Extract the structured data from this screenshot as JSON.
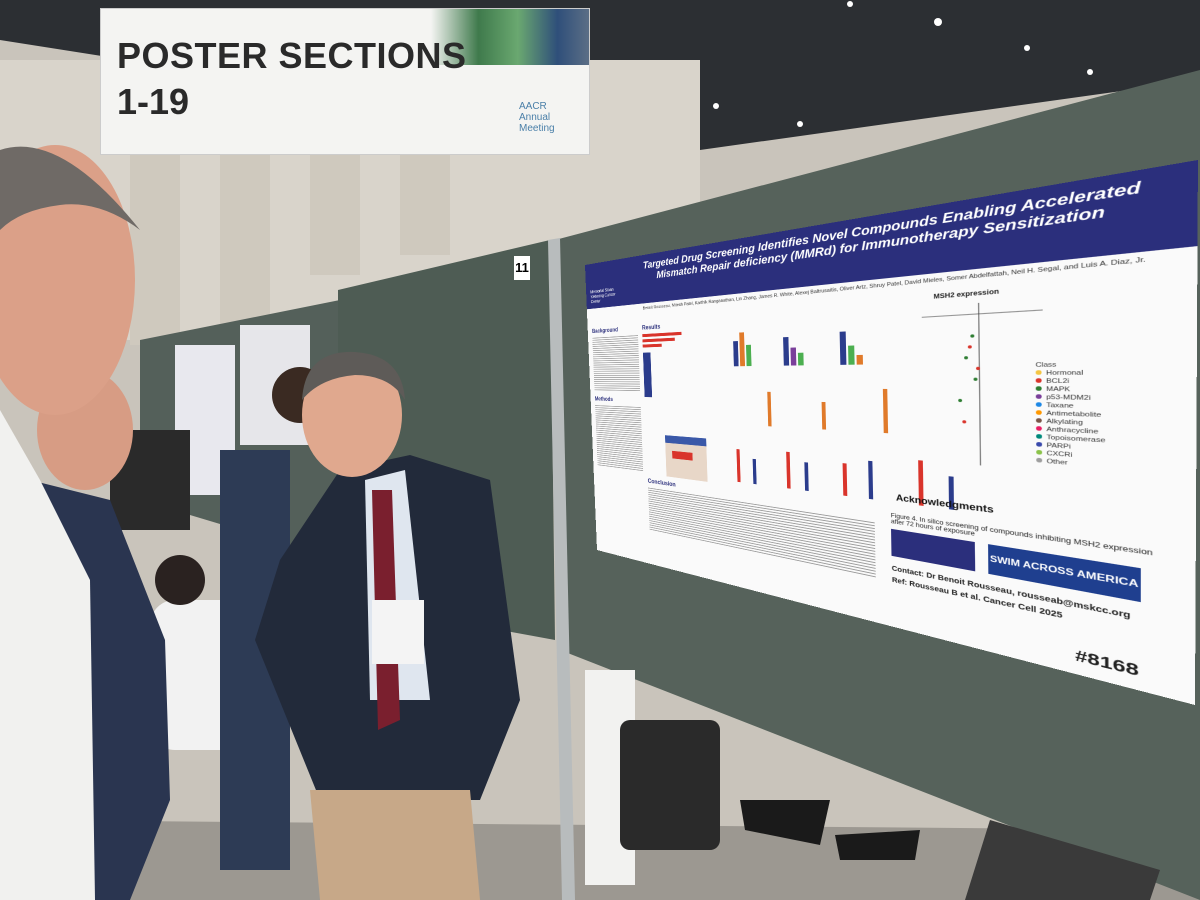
{
  "banner": {
    "title": "POSTER SECTIONS",
    "subtitle": "1-19",
    "logo": "AACR Annual Meeting"
  },
  "board_number": "11",
  "poster": {
    "institution": "Memorial Sloan Kettering Cancer Center",
    "title": "Targeted Drug Screening Identifies Novel Compounds Enabling Accelerated Mismatch Repair deficiency (MMRd) for Immunotherapy Sensitization",
    "authors": "Benoit Rousseau, Mitesh Patel, Karthik Ranganathan, Lin Zhang, James R. White, Alexej Baltrusaitis, Oliver Artz, Shruy Patel, David Mieles, Somer Abdelfattah, Neil H. Segal, and Luis A. Diaz, Jr.",
    "sections": {
      "background": "Background",
      "results": "Results",
      "methods": "Methods",
      "conclusion": "Conclusion",
      "acknowledgments": "Acknowledgments"
    },
    "msh2": "MSH2 expression",
    "legend_title": "Class",
    "legend": [
      "Hormonal",
      "BCL2i",
      "MAPK",
      "p53-MDM2i",
      "Taxane",
      "Antimetabolite",
      "Alkylating",
      "Anthracycline",
      "Topoisomerase",
      "PARPi",
      "CXCRi",
      "Other"
    ],
    "figure4": "Figure 4. In silico screening of compounds inhibiting MSH2 expression after 72 hours of exposure",
    "contact": "Contact: Dr Benoit Rousseau, rousseab@mskcc.org",
    "ref": "Ref: Rousseau B et al. Cancer Cell 2025",
    "number": "#8168",
    "sponsor": "SWIM ACROSS AMERICA"
  }
}
